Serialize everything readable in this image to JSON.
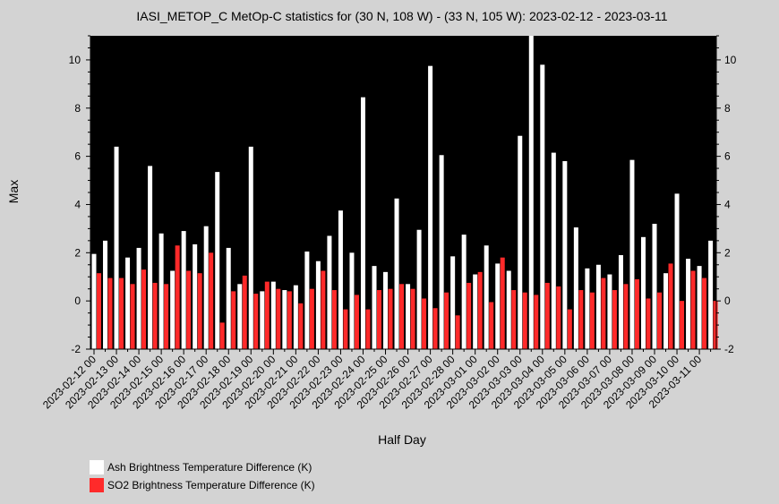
{
  "chart_data": {
    "type": "bar",
    "title": "IASI_METOP_C MetOp-C statistics for (30 N, 108 W) - (33 N, 105 W): 2023-02-12 - 2023-03-11",
    "xlabel": "Half Day",
    "ylabel": "Max",
    "ylim": [
      -2,
      11
    ],
    "y_ticks": [
      -2,
      0,
      2,
      4,
      6,
      8,
      10
    ],
    "x_tick_labels": [
      "2023-02-12 00",
      "2023-02-13 00",
      "2023-02-14 00",
      "2023-02-15 00",
      "2023-02-16 00",
      "2023-02-17 00",
      "2023-02-18 00",
      "2023-02-19 00",
      "2023-02-20 00",
      "2023-02-21 00",
      "2023-02-22 00",
      "2023-02-23 00",
      "2023-02-24 00",
      "2023-02-25 00",
      "2023-02-26 00",
      "2023-02-27 00",
      "2023-02-28 00",
      "2023-03-01 00",
      "2023-03-02 00",
      "2023-03-03 00",
      "2023-03-04 00",
      "2023-03-05 00",
      "2023-03-06 00",
      "2023-03-07 00",
      "2023-03-08 00",
      "2023-03-09 00",
      "2023-03-10 00",
      "2023-03-11 00"
    ],
    "grid": false,
    "legend_position": "bottom-left",
    "series": [
      {
        "name": "Ash Brightness Temperature Difference (K)",
        "color": "#ffffff",
        "values": [
          1.95,
          2.5,
          6.4,
          1.8,
          2.2,
          5.6,
          2.8,
          1.25,
          2.9,
          2.35,
          3.1,
          5.35,
          2.2,
          0.7,
          6.4,
          0.4,
          0.8,
          0.45,
          0.65,
          2.05,
          1.65,
          2.7,
          3.75,
          2.0,
          8.45,
          1.45,
          1.2,
          4.25,
          0.7,
          2.95,
          9.75,
          6.05,
          1.85,
          2.75,
          1.1,
          2.3,
          1.55,
          1.25,
          6.85,
          11.0,
          9.8,
          6.15,
          5.8,
          3.05,
          1.35,
          1.5,
          1.1,
          1.9,
          5.85,
          2.65,
          3.2,
          1.15,
          4.45,
          1.75,
          1.45,
          2.5
        ]
      },
      {
        "name": "SO2 Brightness Temperature Difference (K)",
        "color": "#ff2a2a",
        "values": [
          1.15,
          0.95,
          0.95,
          0.7,
          1.3,
          0.75,
          0.7,
          2.3,
          1.25,
          1.15,
          2.0,
          -0.9,
          0.4,
          1.05,
          0.3,
          0.8,
          0.5,
          0.4,
          -0.1,
          0.5,
          1.25,
          0.45,
          -0.35,
          0.25,
          -0.35,
          0.45,
          0.5,
          0.7,
          0.5,
          0.1,
          -0.3,
          0.35,
          -0.6,
          0.75,
          1.2,
          -0.05,
          1.8,
          0.45,
          0.35,
          0.25,
          0.75,
          0.6,
          -0.35,
          0.45,
          0.35,
          0.95,
          0.45,
          0.7,
          0.9,
          0.1,
          0.35,
          1.55,
          0.0,
          1.25,
          0.95,
          0.0
        ]
      }
    ]
  }
}
